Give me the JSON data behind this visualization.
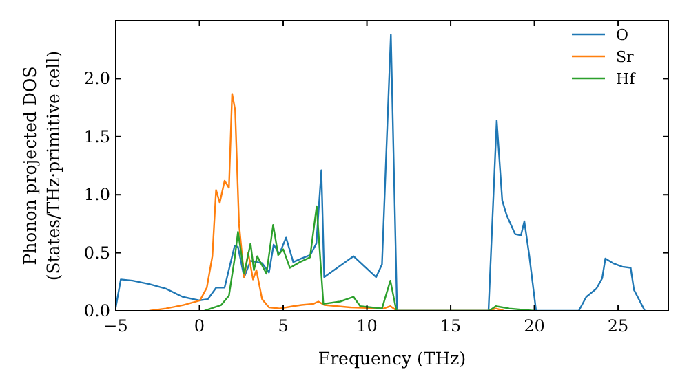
{
  "chart_data": {
    "type": "line",
    "xlabel": "Frequency (THz)",
    "ylabel": "Phonon projected DOS\n(States/THz·primitive cell)",
    "xlim": [
      -5,
      28
    ],
    "ylim": [
      0,
      2.5
    ],
    "xticks": [
      {
        "value": -5,
        "label": "−5"
      },
      0,
      5,
      10,
      15,
      20,
      25
    ],
    "yticks": [
      {
        "value": 0,
        "label": "0.0"
      },
      0.5,
      {
        "value": 1,
        "label": "1.0"
      },
      1.5,
      {
        "value": 2,
        "label": "2.0"
      }
    ],
    "legend": "top right",
    "grid": false,
    "marker": "none",
    "line_style": "solid",
    "series": [
      {
        "name": "O",
        "color": "#1f77b4",
        "x": [
          -5,
          -4.7,
          -4,
          -3,
          -2,
          -1,
          0,
          0.5,
          1,
          1.5,
          2.1,
          2.3,
          2.67,
          3.05,
          3.74,
          4.15,
          4.43,
          4.78,
          5.17,
          5.6,
          6.07,
          6.62,
          6.98,
          7.28,
          7.45,
          9.2,
          10.55,
          10.9,
          11.43,
          11.8,
          17.26,
          17.75,
          18.08,
          18.35,
          18.85,
          19.2,
          19.4,
          19.7,
          20.1,
          22.65,
          23.1,
          23.7,
          24.05,
          24.24,
          24.7,
          25.25,
          25.75,
          25.95,
          26.6
        ],
        "values": [
          0.03,
          0.27,
          0.26,
          0.23,
          0.19,
          0.12,
          0.09,
          0.1,
          0.2,
          0.2,
          0.56,
          0.55,
          0.29,
          0.43,
          0.41,
          0.33,
          0.57,
          0.49,
          0.63,
          0.42,
          0.45,
          0.48,
          0.58,
          1.21,
          0.29,
          0.47,
          0.29,
          0.4,
          2.38,
          0,
          0,
          1.64,
          0.95,
          0.82,
          0.66,
          0.65,
          0.77,
          0.47,
          0,
          0,
          0.12,
          0.19,
          0.28,
          0.45,
          0.41,
          0.38,
          0.37,
          0.18,
          0
        ]
      },
      {
        "name": "Sr",
        "color": "#ff7f0e",
        "x": [
          -3,
          -2,
          -0.96,
          0.03,
          0.44,
          0.77,
          0.99,
          1.21,
          1.5,
          1.76,
          1.95,
          2.13,
          2.36,
          2.67,
          2.91,
          3.2,
          3.4,
          3.74,
          4.15,
          4.8,
          5.6,
          6.1,
          6.8,
          7.1,
          7.45,
          9,
          11,
          11.4,
          11.8,
          17.3,
          17.7,
          18.2
        ],
        "values": [
          0,
          0.02,
          0.05,
          0.09,
          0.2,
          0.47,
          1.04,
          0.93,
          1.12,
          1.06,
          1.87,
          1.73,
          0.75,
          0.29,
          0.5,
          0.27,
          0.35,
          0.1,
          0.03,
          0.02,
          0.04,
          0.05,
          0.06,
          0.08,
          0.05,
          0.03,
          0.02,
          0.04,
          0,
          0,
          0.02,
          0
        ]
      },
      {
        "name": "Hf",
        "color": "#2ca02c",
        "x": [
          0.3,
          0.9,
          1.3,
          1.76,
          2.1,
          2.3,
          2.67,
          3.05,
          3.25,
          3.45,
          4,
          4.4,
          4.7,
          5,
          5.4,
          6,
          6.6,
          7,
          7.4,
          8.4,
          9.2,
          9.6,
          10.9,
          11.4,
          11.76,
          17.3,
          17.7,
          18.5,
          20
        ],
        "values": [
          0,
          0.03,
          0.05,
          0.13,
          0.45,
          0.68,
          0.32,
          0.58,
          0.35,
          0.47,
          0.32,
          0.74,
          0.48,
          0.53,
          0.37,
          0.42,
          0.46,
          0.9,
          0.06,
          0.08,
          0.12,
          0.04,
          0.02,
          0.26,
          0,
          0,
          0.04,
          0.02,
          0
        ]
      }
    ]
  }
}
